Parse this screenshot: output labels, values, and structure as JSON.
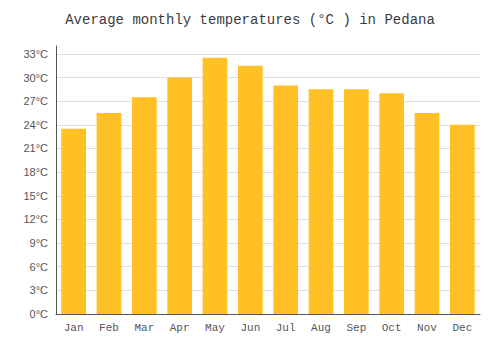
{
  "chart_data": {
    "type": "bar",
    "title": "Average monthly temperatures (°C ) in Pedana",
    "categories": [
      "Jan",
      "Feb",
      "Mar",
      "Apr",
      "May",
      "Jun",
      "Jul",
      "Aug",
      "Sep",
      "Oct",
      "Nov",
      "Dec"
    ],
    "values": [
      23.5,
      25.5,
      27.5,
      30.0,
      32.5,
      31.5,
      29.0,
      28.5,
      28.5,
      28.0,
      25.5,
      24.0
    ],
    "color": "#FFC125",
    "ylim": [
      0,
      34
    ],
    "yticks": [
      {
        "value": 0,
        "label": "0°C"
      },
      {
        "value": 3,
        "label": "3°C"
      },
      {
        "value": 6,
        "label": "6°C"
      },
      {
        "value": 9,
        "label": "9°C"
      },
      {
        "value": 12,
        "label": "12°C"
      },
      {
        "value": 15,
        "label": "15°C"
      },
      {
        "value": 18,
        "label": "18°C"
      },
      {
        "value": 21,
        "label": "21°C"
      },
      {
        "value": 24,
        "label": "24°C"
      },
      {
        "value": 27,
        "label": "27°C"
      },
      {
        "value": 30,
        "label": "30°C"
      },
      {
        "value": 33,
        "label": "33°C"
      }
    ],
    "grid": true
  }
}
